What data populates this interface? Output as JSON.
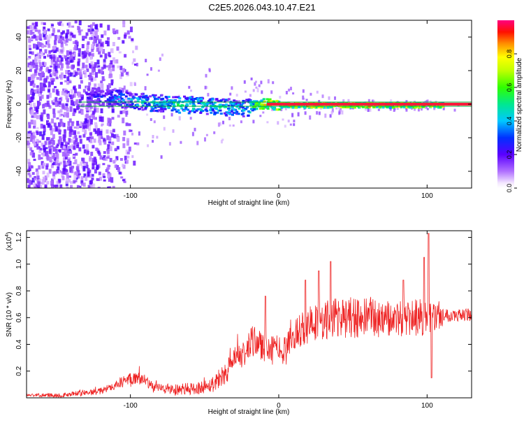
{
  "title": "C2E5.2026.043.10.47.E21",
  "chart_data": [
    {
      "type": "heatmap",
      "title": "C2E5.2026.043.10.47.E21",
      "xlabel": "Height of straight line (km)",
      "ylabel": "Frequency (Hz)",
      "xlim": [
        -170,
        130
      ],
      "ylim": [
        -50,
        50
      ],
      "xticks": [
        -100,
        0,
        100
      ],
      "yticks": [
        -40,
        -20,
        0,
        20,
        40
      ],
      "signal_line": {
        "frequency_hz": 0,
        "x_start": -135,
        "x_end": 130
      },
      "colorbar": {
        "label": "Normalized spectral amplitude",
        "range": [
          0,
          1
        ],
        "ticks": [
          "0.0",
          "0.2",
          "0.4",
          "0.6",
          "0.8"
        ]
      },
      "trend": [
        {
          "x": -125,
          "freq": 5,
          "amp": 0.3
        },
        {
          "x": -110,
          "freq": 4,
          "amp": 0.45
        },
        {
          "x": -95,
          "freq": 2,
          "amp": 0.5
        },
        {
          "x": -80,
          "freq": 1,
          "amp": 0.55
        },
        {
          "x": -60,
          "freq": 0,
          "amp": 0.6
        },
        {
          "x": -40,
          "freq": -1,
          "amp": 0.55
        },
        {
          "x": -25,
          "freq": -2,
          "amp": 0.5
        },
        {
          "x": -10,
          "freq": 1,
          "amp": 0.9
        },
        {
          "x": 0,
          "freq": 0,
          "amp": 0.95
        },
        {
          "x": 50,
          "freq": 0,
          "amp": 1.0
        },
        {
          "x": 105,
          "freq": 0,
          "amp": 0.95
        }
      ]
    },
    {
      "type": "line",
      "xlabel": "Height of straight line (km)",
      "ylabel": "SNR (10 * v/v)",
      "y_multiplier": "(x10",
      "y_multiplier_exp": "4",
      "y_multiplier_close": ")",
      "xlim": [
        -170,
        130
      ],
      "ylim": [
        0,
        1.25
      ],
      "xticks": [
        -100,
        0,
        100
      ],
      "yticks": [
        0.2,
        0.4,
        0.6,
        0.8,
        1.0,
        1.2
      ],
      "series": [
        {
          "name": "SNR",
          "color": "#ee2222",
          "baseline": [
            [
              -170,
              0.02
            ],
            [
              -145,
              0.02
            ],
            [
              -120,
              0.05
            ],
            [
              -105,
              0.12
            ],
            [
              -95,
              0.16
            ],
            [
              -85,
              0.08
            ],
            [
              -70,
              0.06
            ],
            [
              -55,
              0.07
            ],
            [
              -45,
              0.1
            ],
            [
              -35,
              0.2
            ],
            [
              -28,
              0.3
            ],
            [
              -22,
              0.34
            ],
            [
              -15,
              0.45
            ],
            [
              -8,
              0.32
            ],
            [
              -2,
              0.38
            ],
            [
              5,
              0.35
            ],
            [
              12,
              0.5
            ],
            [
              20,
              0.55
            ],
            [
              30,
              0.58
            ],
            [
              45,
              0.6
            ],
            [
              60,
              0.6
            ],
            [
              80,
              0.58
            ],
            [
              95,
              0.6
            ],
            [
              105,
              0.6
            ],
            [
              115,
              0.62
            ],
            [
              130,
              0.62
            ]
          ],
          "noise": [
            [
              -170,
              0.01
            ],
            [
              -110,
              0.03
            ],
            [
              -100,
              0.06
            ],
            [
              -80,
              0.04
            ],
            [
              -50,
              0.05
            ],
            [
              -30,
              0.1
            ],
            [
              -15,
              0.14
            ],
            [
              0,
              0.1
            ],
            [
              15,
              0.14
            ],
            [
              40,
              0.16
            ],
            [
              70,
              0.14
            ],
            [
              100,
              0.14
            ],
            [
              115,
              0.05
            ],
            [
              130,
              0.05
            ]
          ],
          "spikes": [
            {
              "x": 101,
              "y": 1.23
            },
            {
              "x": 98,
              "y": 1.05
            },
            {
              "x": 35,
              "y": 1.02
            },
            {
              "x": 18,
              "y": 0.88
            },
            {
              "x": 27,
              "y": 0.95
            },
            {
              "x": -9,
              "y": 0.76
            },
            {
              "x": 84,
              "y": 0.88
            },
            {
              "x": 103,
              "y": 0.15
            }
          ]
        }
      ]
    }
  ]
}
